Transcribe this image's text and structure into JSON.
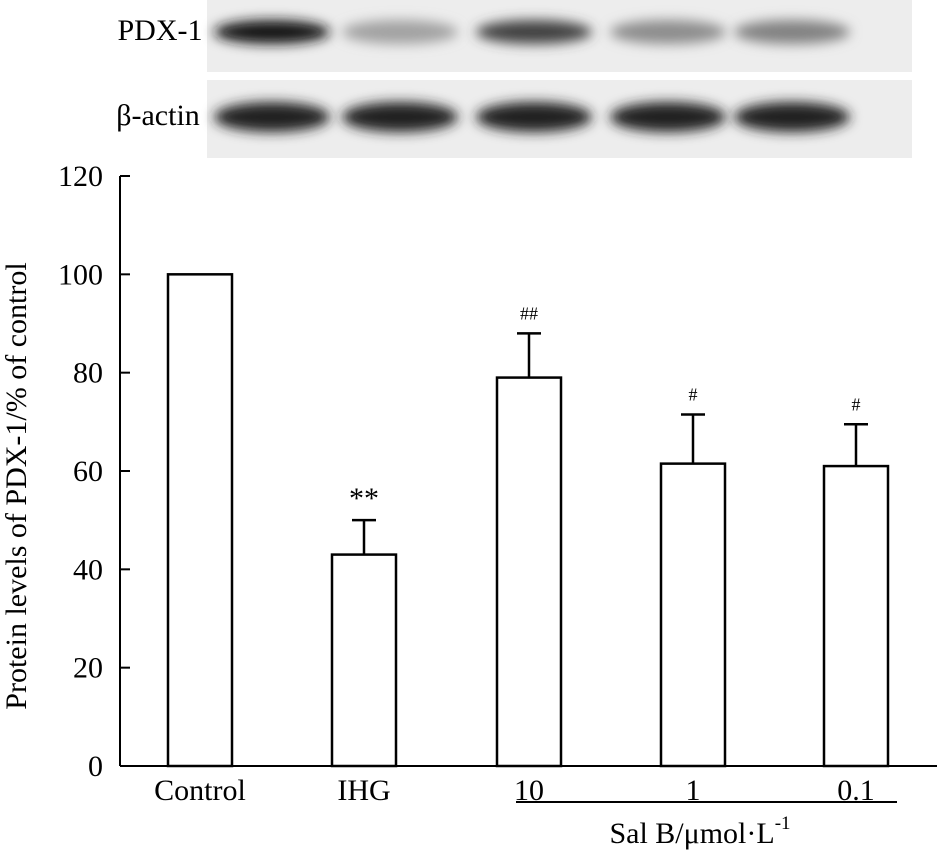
{
  "blot": {
    "rows": [
      {
        "label": "PDX-1",
        "intensities": [
          1.0,
          0.35,
          0.8,
          0.45,
          0.5
        ]
      },
      {
        "label": "β-actin",
        "intensities": [
          0.95,
          0.95,
          0.95,
          0.95,
          0.95
        ]
      }
    ]
  },
  "chart_data": {
    "type": "bar",
    "categories": [
      "Control",
      "IHG",
      "10",
      "1",
      "0.1"
    ],
    "values": [
      100,
      43,
      79,
      61.5,
      61
    ],
    "errors": [
      0,
      7,
      9,
      10,
      8.5
    ],
    "annotations": [
      "",
      "**",
      "##",
      "#",
      "#"
    ],
    "ylabel": "Protein levels of PDX-1/% of control",
    "ylim": [
      0,
      120
    ],
    "yticks": [
      0,
      20,
      40,
      60,
      80,
      100,
      120
    ],
    "group_label": {
      "prefix": "Sal B/μmol·L",
      "superscript": "-1"
    },
    "grid": false,
    "colors": {
      "bar_fill": "#ffffff",
      "bar_stroke": "#000000"
    }
  }
}
